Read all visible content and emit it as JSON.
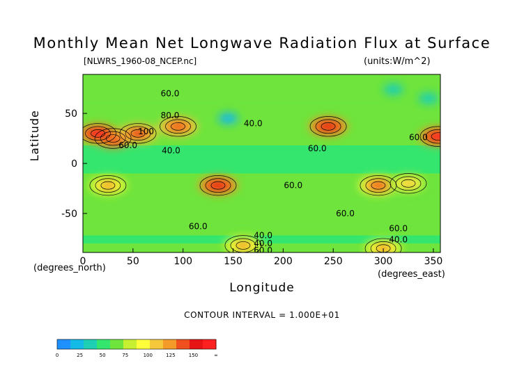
{
  "chart_data": {
    "type": "heatmap",
    "title": "Monthly Mean Net Longwave Radiation Flux at Surface",
    "subtitle_left": "[NLWRS_1960-08_NCEP.nc]",
    "subtitle_right": "(units:W/m^2)",
    "xlabel": "Longitude",
    "ylabel": "Latitude",
    "x_unit": "(degrees_east)",
    "y_unit": "(degrees_north)",
    "xlim": [
      0,
      357
    ],
    "ylim": [
      -89,
      89
    ],
    "x_ticks": [
      0,
      50,
      100,
      150,
      200,
      250,
      300,
      350
    ],
    "y_ticks": [
      50,
      0,
      -50
    ],
    "contour_interval_text": "CONTOUR INTERVAL = 1.000E+01",
    "colorbar": {
      "colors": [
        "#1e90ff",
        "#14b9e6",
        "#1ecfb4",
        "#34e66e",
        "#6ee43c",
        "#c8f032",
        "#ffff3c",
        "#f5c83c",
        "#f39a28",
        "#f0501e",
        "#e61414",
        "#ff2020"
      ],
      "tick_labels": [
        "0",
        "25",
        "50",
        "75",
        "100",
        "125",
        "150",
        "∞"
      ]
    },
    "contour_labels": [
      {
        "text": "60.0",
        "lon": 87,
        "lat": 70
      },
      {
        "text": "80.0",
        "lon": 87,
        "lat": 48
      },
      {
        "text": "100",
        "lon": 63,
        "lat": 32
      },
      {
        "text": "60.0",
        "lon": 45,
        "lat": 18
      },
      {
        "text": "40.0",
        "lon": 88,
        "lat": 13
      },
      {
        "text": "40.0",
        "lon": 170,
        "lat": 40
      },
      {
        "text": "60.0",
        "lon": 234,
        "lat": 15
      },
      {
        "text": "60.0",
        "lon": 335,
        "lat": 26
      },
      {
        "text": "60.0",
        "lon": 210,
        "lat": -22
      },
      {
        "text": "60.0",
        "lon": 262,
        "lat": -50
      },
      {
        "text": "60.0",
        "lon": 115,
        "lat": -63
      },
      {
        "text": "40.0",
        "lon": 180,
        "lat": -72
      },
      {
        "text": "40.0",
        "lon": 180,
        "lat": -80
      },
      {
        "text": "60.0",
        "lon": 180,
        "lat": -87
      },
      {
        "text": "60.0",
        "lon": 315,
        "lat": -65
      },
      {
        "text": "40.0",
        "lon": 315,
        "lat": -76
      }
    ],
    "hotspots": [
      {
        "lon": 30,
        "lat": 25,
        "value": 140
      },
      {
        "lon": 15,
        "lat": 30,
        "value": 140
      },
      {
        "lon": 55,
        "lat": 30,
        "value": 125
      },
      {
        "lon": 95,
        "lat": 37,
        "value": 120
      },
      {
        "lon": 245,
        "lat": 37,
        "value": 130
      },
      {
        "lon": 355,
        "lat": 27,
        "value": 140
      },
      {
        "lon": 135,
        "lat": -22,
        "value": 130
      },
      {
        "lon": 25,
        "lat": -22,
        "value": 100
      },
      {
        "lon": 295,
        "lat": -22,
        "value": 115
      },
      {
        "lon": 325,
        "lat": -20,
        "value": 90
      },
      {
        "lon": 160,
        "lat": -82,
        "value": 100
      },
      {
        "lon": 300,
        "lat": -85,
        "value": 100
      }
    ],
    "coldspots": [
      {
        "lon": 145,
        "lat": 45,
        "value": 20
      },
      {
        "lon": 345,
        "lat": 65,
        "value": 25
      },
      {
        "lon": 310,
        "lat": 74,
        "value": 30
      }
    ]
  }
}
